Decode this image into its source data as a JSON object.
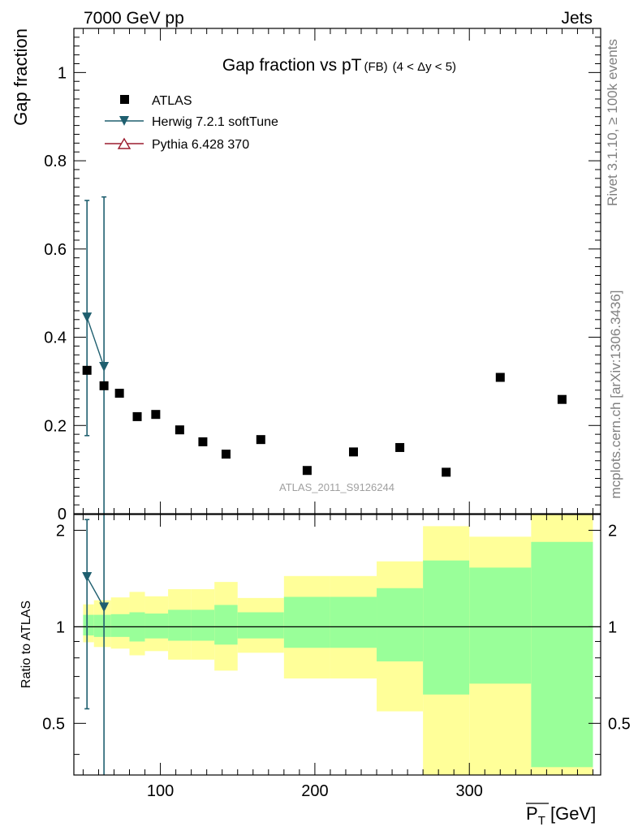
{
  "header": {
    "energy": "7000 GeV pp",
    "process": "Jets"
  },
  "side_labels": {
    "rivet": "Rivet 3.1.10, ≥ 100k events",
    "mcplots": "mcplots.cern.ch [arXiv:1306.3436]"
  },
  "legend": {
    "atlas": "ATLAS",
    "herwig": "Herwig 7.2.1 softTune",
    "pythia": "Pythia 6.428 370"
  },
  "watermark": "ATLAS_2011_S9126244",
  "colors": {
    "herwig": "#1f5f6f",
    "pythia": "#9b1b2e",
    "band_yellow": "#ffff99",
    "band_green": "#99ff99",
    "data": "#000000"
  },
  "chart_data": [
    {
      "type": "scatter",
      "title_main": "Gap fraction vs pT",
      "title_sub": "(FB)",
      "title_range": "(4 < Δy < 5)",
      "ylabel": "Gap fraction",
      "xlim": [
        44,
        385
      ],
      "ylim": [
        0,
        1.1
      ],
      "yticks": [
        0,
        0.2,
        0.4,
        0.6,
        0.8,
        1
      ],
      "ytick_labels": [
        "0",
        "0.2",
        "0.4",
        "0.6",
        "0.8",
        "1"
      ],
      "series": [
        {
          "name": "ATLAS",
          "x": [
            52.5,
            63.5,
            73.5,
            85,
            97,
            112.5,
            127.5,
            142.5,
            165,
            195,
            225,
            255,
            285,
            320,
            360
          ],
          "y": [
            0.325,
            0.29,
            0.273,
            0.22,
            0.225,
            0.19,
            0.163,
            0.135,
            0.168,
            0.098,
            0.14,
            0.15,
            0.094,
            0.309,
            0.259
          ]
        },
        {
          "name": "Herwig 7.2.1 softTune",
          "x": [
            52.5,
            63.5
          ],
          "y": [
            0.445,
            0.333
          ],
          "err_low": [
            0.177,
            0.0
          ],
          "err_high": [
            0.71,
            0.718
          ]
        }
      ]
    },
    {
      "type": "line",
      "ylabel": "Ratio to ATLAS",
      "xlabel": "P_T [GeV]",
      "xlim": [
        44,
        385
      ],
      "ylim": [
        0.345,
        2.24
      ],
      "xticks": [
        100,
        200,
        300
      ],
      "yticks": [
        0.5,
        1,
        2
      ],
      "ytick_labels": [
        "0.5",
        "1",
        "2"
      ],
      "bin_edges": [
        50,
        57,
        68,
        80,
        90,
        105,
        120,
        135,
        150,
        180,
        210,
        240,
        270,
        300,
        340,
        380
      ],
      "band_yellow_low": [
        0.895,
        0.865,
        0.855,
        0.815,
        0.84,
        0.79,
        0.79,
        0.73,
        0.83,
        0.69,
        0.69,
        0.545,
        0.345,
        0.345,
        0.345
      ],
      "band_yellow_high": [
        1.175,
        1.21,
        1.235,
        1.285,
        1.245,
        1.31,
        1.31,
        1.38,
        1.23,
        1.44,
        1.44,
        1.6,
        2.06,
        1.91,
        2.24
      ],
      "band_green_low": [
        0.94,
        0.93,
        0.93,
        0.9,
        0.92,
        0.905,
        0.905,
        0.88,
        0.92,
        0.86,
        0.86,
        0.78,
        0.615,
        0.665,
        0.365
      ],
      "band_green_high": [
        1.09,
        1.09,
        1.095,
        1.11,
        1.1,
        1.13,
        1.13,
        1.17,
        1.11,
        1.24,
        1.24,
        1.32,
        1.61,
        1.53,
        1.84
      ],
      "series": [
        {
          "name": "Herwig 7.2.1 softTune",
          "x": [
            52.5,
            63.5
          ],
          "y": [
            1.43,
            1.15
          ],
          "err_low": [
            0.555,
            0.345
          ],
          "err_high": [
            2.16,
            2.24
          ]
        }
      ],
      "reference_line": 1
    }
  ]
}
